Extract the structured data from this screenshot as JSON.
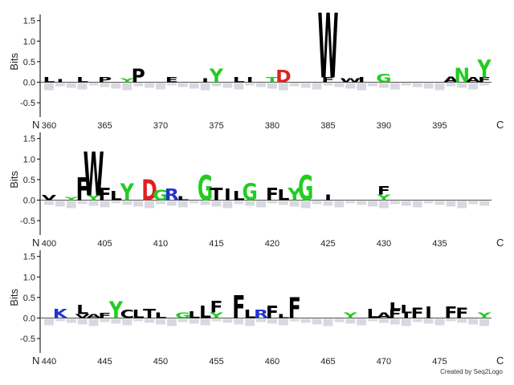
{
  "chart_data": {
    "type": "sequence-logo",
    "ylabel": "Bits",
    "yticks": [
      "1.5",
      "1.0",
      "0.5",
      "0.0",
      "-0.5"
    ],
    "ylim": [
      -0.85,
      1.65
    ],
    "n_label": "N",
    "c_label": "C",
    "grid": false,
    "credit": "Created by Seq2Logo",
    "colors": {
      "hydrophobic": "#000000",
      "polar": "#22cc22",
      "acidic": "#dd2222",
      "basic": "#2233cc",
      "amide": "#aa22cc",
      "misc": "#ff8800",
      "depleted": "#999999"
    },
    "rows": [
      {
        "start": 360,
        "end": 399,
        "tick_positions": [
          "360",
          "365",
          "370",
          "375",
          "380",
          "385",
          "390",
          "395"
        ],
        "letters": [
          {
            "pos": 360,
            "stack": [
              [
                "L",
                0.12,
                "hydrophobic"
              ]
            ]
          },
          {
            "pos": 361,
            "stack": [
              [
                "I",
                0.08,
                "hydrophobic"
              ]
            ]
          },
          {
            "pos": 363,
            "stack": [
              [
                "L",
                0.12,
                "hydrophobic"
              ]
            ]
          },
          {
            "pos": 365,
            "stack": [
              [
                "P",
                0.12,
                "hydrophobic"
              ]
            ]
          },
          {
            "pos": 367,
            "stack": [
              [
                "Y",
                0.1,
                "polar"
              ]
            ]
          },
          {
            "pos": 368,
            "stack": [
              [
                "P",
                0.32,
                "hydrophobic"
              ]
            ]
          },
          {
            "pos": 371,
            "stack": [
              [
                "E",
                0.12,
                "hydrophobic"
              ]
            ]
          },
          {
            "pos": 374,
            "stack": [
              [
                "I",
                0.1,
                "hydrophobic"
              ]
            ]
          },
          {
            "pos": 375,
            "stack": [
              [
                "Y",
                0.32,
                "polar"
              ]
            ]
          },
          {
            "pos": 377,
            "stack": [
              [
                "L",
                0.12,
                "hydrophobic"
              ]
            ]
          },
          {
            "pos": 378,
            "stack": [
              [
                "I",
                0.12,
                "hydrophobic"
              ]
            ]
          },
          {
            "pos": 380,
            "stack": [
              [
                "T",
                0.12,
                "polar"
              ]
            ]
          },
          {
            "pos": 381,
            "stack": [
              [
                "D",
                0.3,
                "acidic"
              ]
            ]
          },
          {
            "pos": 385,
            "stack": [
              [
                "F",
                0.12,
                "hydrophobic"
              ],
              [
                "W",
                1.55,
                "hydrophobic"
              ]
            ]
          },
          {
            "pos": 387,
            "stack": [
              [
                "W",
                0.1,
                "hydrophobic"
              ]
            ]
          },
          {
            "pos": 388,
            "stack": [
              [
                "I",
                0.12,
                "hydrophobic"
              ]
            ]
          },
          {
            "pos": 390,
            "stack": [
              [
                "G",
                0.2,
                "polar"
              ]
            ]
          },
          {
            "pos": 396,
            "stack": [
              [
                "A",
                0.14,
                "hydrophobic"
              ]
            ]
          },
          {
            "pos": 397,
            "stack": [
              [
                "N",
                0.35,
                "polar"
              ]
            ]
          },
          {
            "pos": 398,
            "stack": [
              [
                "A",
                0.12,
                "hydrophobic"
              ]
            ]
          },
          {
            "pos": 399,
            "stack": [
              [
                "F",
                0.12,
                "hydrophobic"
              ],
              [
                "Y",
                0.42,
                "polar"
              ]
            ]
          }
        ]
      },
      {
        "start": 400,
        "end": 439,
        "tick_positions": [
          "400",
          "405",
          "410",
          "415",
          "420",
          "425",
          "430",
          "435"
        ],
        "letters": [
          {
            "pos": 400,
            "stack": [
              [
                "V",
                0.12,
                "hydrophobic"
              ]
            ]
          },
          {
            "pos": 402,
            "stack": [
              [
                "Y",
                0.08,
                "polar"
              ]
            ]
          },
          {
            "pos": 403,
            "stack": [
              [
                "F",
                0.55,
                "hydrophobic"
              ]
            ]
          },
          {
            "pos": 404,
            "stack": [
              [
                "Y",
                0.12,
                "polar"
              ],
              [
                "W",
                1.05,
                "hydrophobic"
              ]
            ]
          },
          {
            "pos": 405,
            "stack": [
              [
                "F",
                0.3,
                "hydrophobic"
              ]
            ]
          },
          {
            "pos": 406,
            "stack": [
              [
                "L",
                0.22,
                "hydrophobic"
              ]
            ]
          },
          {
            "pos": 407,
            "stack": [
              [
                "Y",
                0.4,
                "polar"
              ]
            ]
          },
          {
            "pos": 409,
            "stack": [
              [
                "D",
                0.5,
                "acidic"
              ]
            ]
          },
          {
            "pos": 410,
            "stack": [
              [
                "G",
                0.25,
                "polar"
              ]
            ]
          },
          {
            "pos": 411,
            "stack": [
              [
                "R",
                0.28,
                "basic"
              ]
            ]
          },
          {
            "pos": 412,
            "stack": [
              [
                "L",
                0.1,
                "hydrophobic"
              ]
            ]
          },
          {
            "pos": 414,
            "stack": [
              [
                "G",
                0.6,
                "polar"
              ]
            ]
          },
          {
            "pos": 415,
            "stack": [
              [
                "T",
                0.3,
                "hydrophobic"
              ]
            ]
          },
          {
            "pos": 416,
            "stack": [
              [
                "I",
                0.28,
                "hydrophobic"
              ]
            ]
          },
          {
            "pos": 417,
            "stack": [
              [
                "L",
                0.22,
                "hydrophobic"
              ]
            ]
          },
          {
            "pos": 418,
            "stack": [
              [
                "G",
                0.4,
                "polar"
              ]
            ]
          },
          {
            "pos": 420,
            "stack": [
              [
                "F",
                0.3,
                "hydrophobic"
              ]
            ]
          },
          {
            "pos": 421,
            "stack": [
              [
                "L",
                0.26,
                "hydrophobic"
              ]
            ]
          },
          {
            "pos": 422,
            "stack": [
              [
                "Y",
                0.3,
                "polar"
              ]
            ]
          },
          {
            "pos": 423,
            "stack": [
              [
                "G",
                0.6,
                "polar"
              ]
            ]
          },
          {
            "pos": 425,
            "stack": [
              [
                "I",
                0.14,
                "hydrophobic"
              ]
            ]
          },
          {
            "pos": 430,
            "stack": [
              [
                "Y",
                0.14,
                "polar"
              ],
              [
                "F",
                0.2,
                "hydrophobic"
              ]
            ]
          }
        ]
      },
      {
        "start": 440,
        "end": 479,
        "tick_positions": [
          "440",
          "445",
          "450",
          "455",
          "460",
          "465",
          "470",
          "475"
        ],
        "letters": [
          {
            "pos": 441,
            "stack": [
              [
                "K",
                0.22,
                "basic"
              ]
            ]
          },
          {
            "pos": 443,
            "stack": [
              [
                "V",
                0.1,
                "hydrophobic"
              ],
              [
                "L",
                0.22,
                "hydrophobic"
              ]
            ]
          },
          {
            "pos": 444,
            "stack": [
              [
                "A",
                0.1,
                "hydrophobic"
              ]
            ]
          },
          {
            "pos": 445,
            "stack": [
              [
                "F",
                0.12,
                "hydrophobic"
              ]
            ]
          },
          {
            "pos": 446,
            "stack": [
              [
                "Y",
                0.4,
                "polar"
              ]
            ]
          },
          {
            "pos": 447,
            "stack": [
              [
                "C",
                0.2,
                "hydrophobic"
              ]
            ]
          },
          {
            "pos": 448,
            "stack": [
              [
                "L",
                0.2,
                "hydrophobic"
              ]
            ]
          },
          {
            "pos": 449,
            "stack": [
              [
                "T",
                0.22,
                "hydrophobic"
              ]
            ]
          },
          {
            "pos": 450,
            "stack": [
              [
                "L",
                0.14,
                "hydrophobic"
              ]
            ]
          },
          {
            "pos": 452,
            "stack": [
              [
                "G",
                0.14,
                "polar"
              ]
            ]
          },
          {
            "pos": 453,
            "stack": [
              [
                "L",
                0.16,
                "hydrophobic"
              ]
            ]
          },
          {
            "pos": 454,
            "stack": [
              [
                "L",
                0.3,
                "hydrophobic"
              ]
            ]
          },
          {
            "pos": 455,
            "stack": [
              [
                "Y",
                0.14,
                "polar"
              ],
              [
                "F",
                0.28,
                "hydrophobic"
              ]
            ]
          },
          {
            "pos": 457,
            "stack": [
              [
                "F",
                0.55,
                "hydrophobic"
              ]
            ]
          },
          {
            "pos": 458,
            "stack": [
              [
                "L",
                0.2,
                "hydrophobic"
              ]
            ]
          },
          {
            "pos": 459,
            "stack": [
              [
                "R",
                0.2,
                "basic"
              ]
            ]
          },
          {
            "pos": 460,
            "stack": [
              [
                "F",
                0.3,
                "hydrophobic"
              ]
            ]
          },
          {
            "pos": 461,
            "stack": [
              [
                "L",
                0.1,
                "hydrophobic"
              ]
            ]
          },
          {
            "pos": 462,
            "stack": [
              [
                "F",
                0.5,
                "hydrophobic"
              ]
            ]
          },
          {
            "pos": 467,
            "stack": [
              [
                "Y",
                0.14,
                "polar"
              ]
            ]
          },
          {
            "pos": 469,
            "stack": [
              [
                "L",
                0.22,
                "hydrophobic"
              ]
            ]
          },
          {
            "pos": 470,
            "stack": [
              [
                "A",
                0.14,
                "hydrophobic"
              ]
            ]
          },
          {
            "pos": 471,
            "stack": [
              [
                "F",
                0.2,
                "hydrophobic"
              ],
              [
                "L",
                0.18,
                "hydrophobic"
              ]
            ]
          },
          {
            "pos": 472,
            "stack": [
              [
                "I",
                0.12,
                "hydrophobic"
              ],
              [
                "L",
                0.2,
                "hydrophobic"
              ]
            ]
          },
          {
            "pos": 473,
            "stack": [
              [
                "F",
                0.25,
                "hydrophobic"
              ]
            ]
          },
          {
            "pos": 474,
            "stack": [
              [
                "I",
                0.28,
                "hydrophobic"
              ]
            ]
          },
          {
            "pos": 476,
            "stack": [
              [
                "F",
                0.28,
                "hydrophobic"
              ]
            ]
          },
          {
            "pos": 477,
            "stack": [
              [
                "F",
                0.25,
                "hydrophobic"
              ]
            ]
          },
          {
            "pos": 479,
            "stack": [
              [
                "Y",
                0.14,
                "polar"
              ]
            ]
          }
        ]
      }
    ]
  }
}
